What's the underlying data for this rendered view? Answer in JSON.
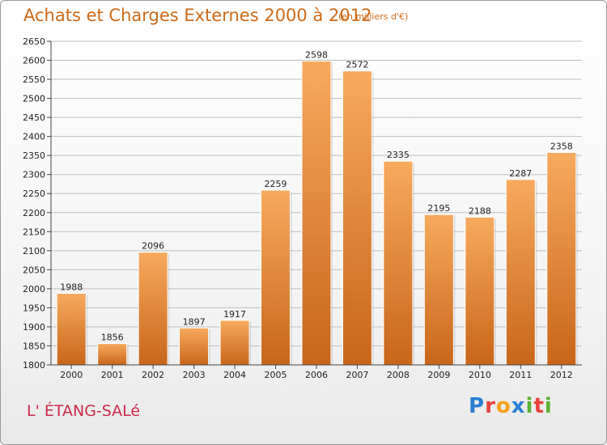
{
  "header": {
    "title": "Achats et Charges Externes 2000 à 2012",
    "subtitle": "(en milliers d'€)"
  },
  "footer": {
    "place": "L' ÉTANG-SALé",
    "logo_text": "Proxiti",
    "logo_colors": [
      "#2a7fd4",
      "#e8423a",
      "#f5a01a",
      "#2a7fd4",
      "#5bb030",
      "#e8423a",
      "#5bb030"
    ]
  },
  "colors": {
    "bar_top": "#f7aa5e",
    "bar_bottom": "#c8661a",
    "grid": "#bfbfbf",
    "accent": "#cc6a1a"
  },
  "chart_data": {
    "type": "bar",
    "categories": [
      "2000",
      "2001",
      "2002",
      "2003",
      "2004",
      "2005",
      "2006",
      "2007",
      "2008",
      "2009",
      "2010",
      "2011",
      "2012"
    ],
    "values": [
      1988,
      1856,
      2096,
      1897,
      1917,
      2259,
      2598,
      2572,
      2335,
      2195,
      2188,
      2287,
      2358
    ],
    "title": "Achats et Charges Externes 2000 à 2012",
    "subtitle": "(en milliers d'€)",
    "ylim": [
      1800,
      2650
    ],
    "yticks": [
      1800,
      1850,
      1900,
      1950,
      2000,
      2050,
      2100,
      2150,
      2200,
      2250,
      2300,
      2350,
      2400,
      2450,
      2500,
      2550,
      2600,
      2650
    ],
    "grid": true,
    "data_labels": true,
    "legend": "none"
  }
}
